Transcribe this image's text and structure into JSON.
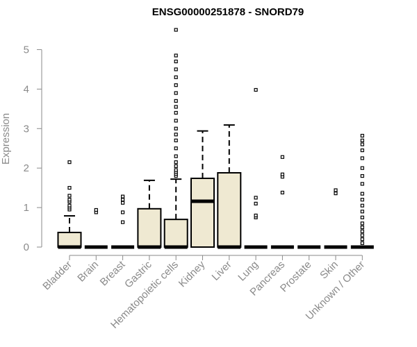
{
  "chart_data": {
    "type": "box",
    "title": "ENSG00000251878 - SNORD79",
    "xlabel": "",
    "ylabel": "Expression",
    "ylim": [
      0,
      5.5
    ],
    "yticks": [
      0,
      1,
      2,
      3,
      4,
      5
    ],
    "box_fill": "#efe9d2",
    "categories": [
      "Bladder",
      "Brain",
      "Breast",
      "Gastric",
      "Hematopoietic cells",
      "Kidney",
      "Liver",
      "Lung",
      "Pancreas",
      "Prostate",
      "Skin",
      "Unknown / Other"
    ],
    "boxes": [
      {
        "q1": 0,
        "median": 0,
        "q3": 0.37,
        "whisker_low": 0,
        "whisker_high": 0.79,
        "outliers": [
          0.95,
          1.0,
          1.05,
          1.15,
          1.2,
          1.3,
          1.5,
          2.15
        ]
      },
      {
        "q1": 0,
        "median": 0,
        "q3": 0,
        "whisker_low": 0,
        "whisker_high": 0,
        "outliers": [
          0.88,
          0.94
        ]
      },
      {
        "q1": 0,
        "median": 0,
        "q3": 0,
        "whisker_low": 0,
        "whisker_high": 0,
        "outliers": [
          0.63,
          0.88,
          1.12,
          1.2,
          1.28
        ]
      },
      {
        "q1": 0,
        "median": 0,
        "q3": 0.97,
        "whisker_low": 0,
        "whisker_high": 1.69,
        "outliers": []
      },
      {
        "q1": 0,
        "median": 0,
        "q3": 0.7,
        "whisker_low": 0,
        "whisker_high": 1.72,
        "outliers": [
          1.8,
          1.85,
          1.9,
          1.95,
          2.05,
          2.15,
          2.3,
          2.5,
          2.7,
          2.85,
          3.0,
          3.2,
          3.4,
          3.55,
          3.7,
          3.9,
          4.1,
          4.3,
          4.5,
          4.7,
          4.85,
          5.5
        ]
      },
      {
        "q1": 0,
        "median": 1.16,
        "q3": 1.74,
        "whisker_low": 0,
        "whisker_high": 2.94,
        "outliers": []
      },
      {
        "q1": 0,
        "median": 0,
        "q3": 1.88,
        "whisker_low": 0,
        "whisker_high": 3.09,
        "outliers": []
      },
      {
        "q1": 0,
        "median": 0,
        "q3": 0,
        "whisker_low": 0,
        "whisker_high": 0,
        "outliers": [
          0.75,
          0.8,
          1.1,
          1.25,
          3.98
        ]
      },
      {
        "q1": 0,
        "median": 0,
        "q3": 0,
        "whisker_low": 0,
        "whisker_high": 0,
        "outliers": [
          1.38,
          1.78,
          1.84,
          2.28
        ]
      },
      {
        "q1": 0,
        "median": 0,
        "q3": 0,
        "whisker_low": 0,
        "whisker_high": 0,
        "outliers": []
      },
      {
        "q1": 0,
        "median": 0,
        "q3": 0,
        "whisker_low": 0,
        "whisker_high": 0,
        "outliers": [
          1.36,
          1.44
        ]
      },
      {
        "q1": 0,
        "median": 0,
        "q3": 0,
        "whisker_low": 0,
        "whisker_high": 0,
        "outliers": [
          0.1,
          0.2,
          0.3,
          0.4,
          0.5,
          0.6,
          0.75,
          0.9,
          1.05,
          1.2,
          1.35,
          1.6,
          1.8,
          2.0,
          2.25,
          2.45,
          2.6,
          2.7,
          2.82
        ]
      }
    ]
  }
}
